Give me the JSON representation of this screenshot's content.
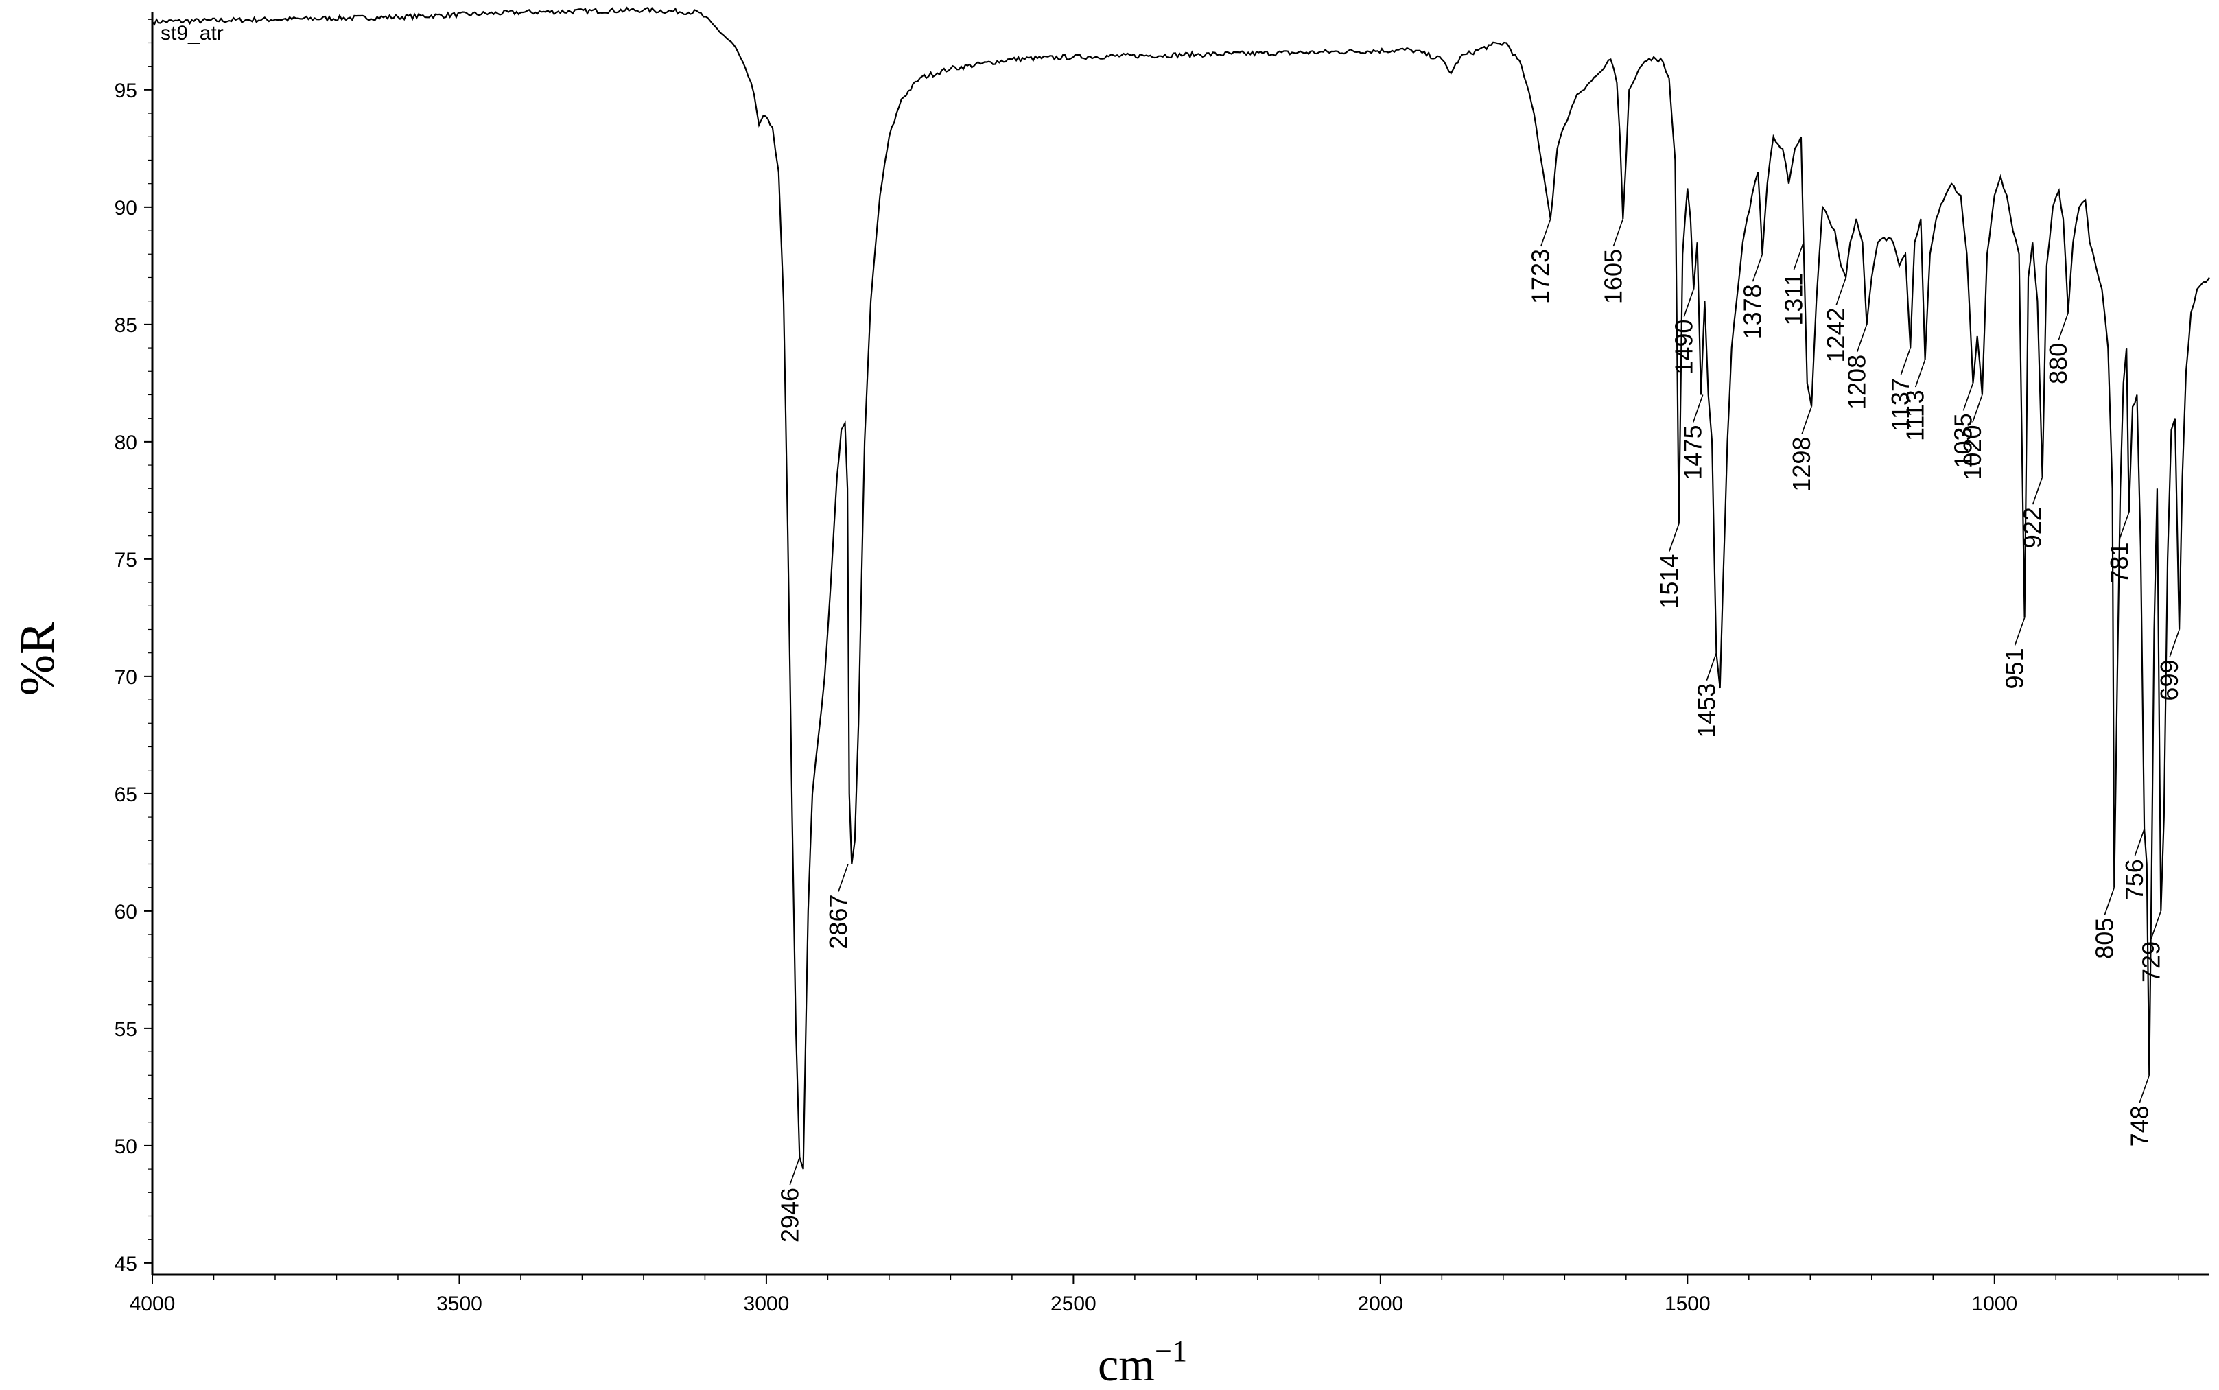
{
  "chart_data": {
    "type": "line",
    "sample_name": "st9_atr",
    "xlabel": "cm",
    "xlabel_superscript": "−1",
    "ylabel": "%R",
    "xlim": [
      4000,
      650
    ],
    "ylim": [
      44.5,
      98.3
    ],
    "x_reversed": true,
    "x_ticks": [
      4000,
      3500,
      3000,
      2500,
      2000,
      1500,
      1000
    ],
    "x_tick_labels": [
      "4000",
      "3500",
      "3000",
      "2500",
      "2000",
      "1500",
      "1000"
    ],
    "y_ticks": [
      45,
      50,
      55,
      60,
      65,
      70,
      75,
      80,
      85,
      90,
      95
    ],
    "y_tick_labels": [
      "45",
      "50",
      "55",
      "60",
      "65",
      "70",
      "75",
      "80",
      "85",
      "90",
      "95"
    ],
    "grid": false,
    "series": [
      {
        "points": [
          [
            4000,
            97.9
          ],
          [
            3800,
            98.0
          ],
          [
            3600,
            98.1
          ],
          [
            3400,
            98.3
          ],
          [
            3200,
            98.4
          ],
          [
            3110,
            98.3
          ],
          [
            3080,
            97.6
          ],
          [
            3050,
            96.8
          ],
          [
            3030,
            95.6
          ],
          [
            3020,
            94.8
          ],
          [
            3012,
            93.5
          ],
          [
            3005,
            93.9
          ],
          [
            2990,
            93.4
          ],
          [
            2980,
            91.5
          ],
          [
            2972,
            86.0
          ],
          [
            2965,
            76.0
          ],
          [
            2958,
            64.0
          ],
          [
            2952,
            55.0
          ],
          [
            2946,
            49.5
          ],
          [
            2940,
            49.0
          ],
          [
            2932,
            60.0
          ],
          [
            2925,
            65.0
          ],
          [
            2915,
            67.5
          ],
          [
            2905,
            70.0
          ],
          [
            2895,
            74.0
          ],
          [
            2885,
            78.5
          ],
          [
            2878,
            80.5
          ],
          [
            2872,
            80.8
          ],
          [
            2868,
            78.0
          ],
          [
            2865,
            65.0
          ],
          [
            2861,
            62.0
          ],
          [
            2856,
            63.0
          ],
          [
            2850,
            68.0
          ],
          [
            2840,
            80.0
          ],
          [
            2830,
            86.0
          ],
          [
            2815,
            90.5
          ],
          [
            2800,
            93.0
          ],
          [
            2780,
            94.6
          ],
          [
            2750,
            95.5
          ],
          [
            2700,
            95.9
          ],
          [
            2600,
            96.3
          ],
          [
            2500,
            96.4
          ],
          [
            2300,
            96.5
          ],
          [
            2100,
            96.6
          ],
          [
            1950,
            96.7
          ],
          [
            1900,
            96.3
          ],
          [
            1885,
            95.7
          ],
          [
            1870,
            96.4
          ],
          [
            1820,
            96.9
          ],
          [
            1795,
            97.0
          ],
          [
            1770,
            96.0
          ],
          [
            1750,
            94.0
          ],
          [
            1735,
            91.5
          ],
          [
            1723,
            89.5
          ],
          [
            1712,
            92.5
          ],
          [
            1700,
            93.5
          ],
          [
            1680,
            94.8
          ],
          [
            1660,
            95.3
          ],
          [
            1640,
            95.8
          ],
          [
            1625,
            96.3
          ],
          [
            1615,
            95.3
          ],
          [
            1610,
            93.0
          ],
          [
            1605,
            89.5
          ],
          [
            1600,
            92.0
          ],
          [
            1595,
            95.0
          ],
          [
            1585,
            95.5
          ],
          [
            1570,
            96.2
          ],
          [
            1555,
            96.4
          ],
          [
            1540,
            96.2
          ],
          [
            1530,
            95.5
          ],
          [
            1520,
            92.0
          ],
          [
            1514,
            76.5
          ],
          [
            1508,
            88.0
          ],
          [
            1500,
            90.8
          ],
          [
            1495,
            89.5
          ],
          [
            1490,
            86.5
          ],
          [
            1484,
            88.5
          ],
          [
            1478,
            82.0
          ],
          [
            1472,
            86.0
          ],
          [
            1466,
            82.0
          ],
          [
            1460,
            80.0
          ],
          [
            1453,
            71.0
          ],
          [
            1447,
            69.5
          ],
          [
            1442,
            74.0
          ],
          [
            1435,
            80.0
          ],
          [
            1428,
            84.0
          ],
          [
            1420,
            86.0
          ],
          [
            1410,
            88.5
          ],
          [
            1395,
            90.5
          ],
          [
            1385,
            91.5
          ],
          [
            1378,
            88.0
          ],
          [
            1370,
            91.0
          ],
          [
            1360,
            93.0
          ],
          [
            1345,
            92.5
          ],
          [
            1335,
            91.0
          ],
          [
            1325,
            92.5
          ],
          [
            1315,
            93.0
          ],
          [
            1311,
            88.5
          ],
          [
            1305,
            82.5
          ],
          [
            1298,
            81.5
          ],
          [
            1290,
            86.0
          ],
          [
            1280,
            90.0
          ],
          [
            1270,
            89.5
          ],
          [
            1260,
            89.0
          ],
          [
            1250,
            87.5
          ],
          [
            1242,
            87.0
          ],
          [
            1235,
            88.5
          ],
          [
            1225,
            89.5
          ],
          [
            1215,
            88.5
          ],
          [
            1208,
            85.0
          ],
          [
            1200,
            87.0
          ],
          [
            1190,
            88.5
          ],
          [
            1180,
            88.7
          ],
          [
            1165,
            88.5
          ],
          [
            1155,
            87.5
          ],
          [
            1145,
            88.0
          ],
          [
            1137,
            84.0
          ],
          [
            1130,
            88.5
          ],
          [
            1120,
            89.5
          ],
          [
            1113,
            83.5
          ],
          [
            1105,
            88.0
          ],
          [
            1095,
            89.5
          ],
          [
            1080,
            90.5
          ],
          [
            1070,
            91.0
          ],
          [
            1055,
            90.5
          ],
          [
            1045,
            88.0
          ],
          [
            1035,
            82.5
          ],
          [
            1028,
            84.5
          ],
          [
            1020,
            82.0
          ],
          [
            1012,
            88.0
          ],
          [
            1000,
            90.5
          ],
          [
            990,
            91.3
          ],
          [
            980,
            90.5
          ],
          [
            970,
            89.0
          ],
          [
            960,
            88.0
          ],
          [
            951,
            72.5
          ],
          [
            945,
            87.0
          ],
          [
            938,
            88.5
          ],
          [
            930,
            86.0
          ],
          [
            922,
            78.5
          ],
          [
            915,
            87.5
          ],
          [
            905,
            90.0
          ],
          [
            895,
            90.7
          ],
          [
            888,
            89.5
          ],
          [
            880,
            85.5
          ],
          [
            872,
            88.5
          ],
          [
            862,
            90.0
          ],
          [
            852,
            90.3
          ],
          [
            845,
            88.5
          ],
          [
            835,
            87.5
          ],
          [
            825,
            86.5
          ],
          [
            815,
            84.0
          ],
          [
            808,
            78.0
          ],
          [
            805,
            61.0
          ],
          [
            800,
            70.0
          ],
          [
            795,
            78.0
          ],
          [
            790,
            82.5
          ],
          [
            785,
            84.0
          ],
          [
            781,
            77.0
          ],
          [
            775,
            81.5
          ],
          [
            768,
            82.0
          ],
          [
            762,
            75.5
          ],
          [
            756,
            63.5
          ],
          [
            752,
            62.0
          ],
          [
            748,
            53.0
          ],
          [
            744,
            62.0
          ],
          [
            740,
            72.0
          ],
          [
            735,
            78.0
          ],
          [
            729,
            60.0
          ],
          [
            724,
            64.0
          ],
          [
            718,
            75.0
          ],
          [
            712,
            80.5
          ],
          [
            706,
            81.0
          ],
          [
            699,
            72.0
          ],
          [
            694,
            78.5
          ],
          [
            688,
            83.0
          ],
          [
            680,
            85.5
          ],
          [
            670,
            86.5
          ],
          [
            660,
            86.8
          ],
          [
            650,
            87.0
          ]
        ]
      }
    ],
    "annotations": [
      {
        "label": "2946",
        "x": 2946,
        "y": 49.5
      },
      {
        "label": "2867",
        "x": 2867,
        "y": 62.0
      },
      {
        "label": "1723",
        "x": 1723,
        "y": 89.5
      },
      {
        "label": "1605",
        "x": 1605,
        "y": 89.5
      },
      {
        "label": "1514",
        "x": 1514,
        "y": 76.5
      },
      {
        "label": "1490",
        "x": 1490,
        "y": 86.5
      },
      {
        "label": "1475",
        "x": 1475,
        "y": 82.0
      },
      {
        "label": "1453",
        "x": 1453,
        "y": 71.0
      },
      {
        "label": "1378",
        "x": 1378,
        "y": 88.0
      },
      {
        "label": "1311",
        "x": 1311,
        "y": 88.5
      },
      {
        "label": "1298",
        "x": 1298,
        "y": 81.5
      },
      {
        "label": "1242",
        "x": 1242,
        "y": 87.0
      },
      {
        "label": "1208",
        "x": 1208,
        "y": 85.0
      },
      {
        "label": "1137",
        "x": 1137,
        "y": 84.0
      },
      {
        "label": "1113",
        "x": 1113,
        "y": 83.5
      },
      {
        "label": "1035",
        "x": 1035,
        "y": 82.5
      },
      {
        "label": "1020",
        "x": 1020,
        "y": 82.0
      },
      {
        "label": "951",
        "x": 951,
        "y": 72.5
      },
      {
        "label": "922",
        "x": 922,
        "y": 78.5
      },
      {
        "label": "880",
        "x": 880,
        "y": 85.5
      },
      {
        "label": "805",
        "x": 805,
        "y": 61.0
      },
      {
        "label": "781",
        "x": 781,
        "y": 77.0
      },
      {
        "label": "756",
        "x": 756,
        "y": 63.5
      },
      {
        "label": "748",
        "x": 748,
        "y": 53.0
      },
      {
        "label": "729",
        "x": 729,
        "y": 60.0
      },
      {
        "label": "699",
        "x": 699,
        "y": 72.0
      }
    ]
  }
}
